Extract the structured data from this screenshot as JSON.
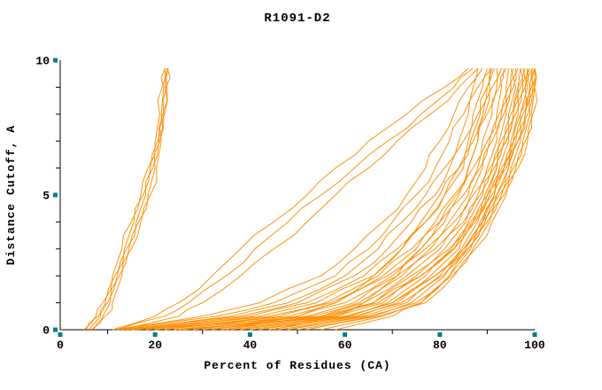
{
  "chart_data": {
    "type": "line",
    "title": "R1091-D2",
    "xlabel": "Percent of Residues (CA)",
    "ylabel": "Distance Cutoff, A",
    "xlim": [
      0,
      100
    ],
    "ylim": [
      0,
      10
    ],
    "x_major_ticks": [
      0,
      20,
      40,
      60,
      80,
      100
    ],
    "x_minor_ticks": [
      10,
      30,
      50,
      70,
      90
    ],
    "y_major_ticks": [
      0,
      5,
      10
    ],
    "y_minor_ticks": [
      1,
      2,
      3,
      4,
      6,
      7,
      8,
      9
    ],
    "grid": false,
    "legend": "none",
    "line_color": "#ff8c00",
    "tick_marker_color": "#008080",
    "y_anchors": [
      0,
      0.5,
      1,
      2,
      3,
      4,
      5,
      6,
      7,
      8,
      9,
      9.7
    ],
    "series_x": [
      [
        5,
        7.5,
        9,
        11,
        13,
        15,
        17,
        18.5,
        20,
        21,
        21.5,
        22
      ],
      [
        5.5,
        8,
        9.5,
        11.5,
        13.5,
        15.5,
        17.5,
        19,
        20.5,
        21.3,
        21.8,
        22.1
      ],
      [
        6,
        8.5,
        10,
        12,
        14,
        16,
        18,
        19.5,
        20.8,
        21.6,
        22.1,
        22.4
      ],
      [
        6.5,
        9,
        10.5,
        12.5,
        14.5,
        16.5,
        18.5,
        20,
        21,
        21.8,
        22.3,
        22.6
      ],
      [
        7,
        9.5,
        11,
        13,
        15,
        17,
        19,
        20.3,
        21.3,
        22,
        22.5,
        22.8
      ],
      [
        11,
        20,
        25,
        32,
        38,
        45,
        52,
        58,
        65,
        73,
        81,
        86
      ],
      [
        12,
        22,
        27,
        35,
        41,
        48,
        55,
        62,
        69,
        76,
        83,
        87
      ],
      [
        13,
        25,
        30,
        38,
        45,
        52,
        58,
        65,
        71,
        78,
        84,
        88
      ],
      [
        11,
        30,
        42,
        55,
        62,
        68,
        73,
        77,
        80,
        83,
        86,
        88
      ],
      [
        12,
        33,
        45,
        58,
        65,
        70,
        75,
        79,
        82,
        85,
        87,
        89
      ],
      [
        13,
        36,
        48,
        60,
        67,
        72,
        77,
        81,
        84,
        86,
        88,
        90
      ],
      [
        14,
        38,
        50,
        62,
        69,
        74,
        79,
        82,
        85,
        87,
        89,
        91
      ],
      [
        15,
        40,
        52,
        64,
        71,
        76,
        80,
        84,
        86,
        88,
        90,
        91.5
      ],
      [
        16,
        42,
        54,
        66,
        72,
        77,
        81,
        85,
        87,
        89,
        91,
        92
      ],
      [
        18,
        44,
        56,
        67,
        74,
        79,
        83,
        86,
        88,
        90,
        92,
        93
      ],
      [
        20,
        46,
        57,
        68,
        75,
        80,
        84,
        87,
        89,
        91,
        92.5,
        93.5
      ],
      [
        22,
        48,
        58,
        69,
        76,
        81,
        85,
        88,
        90,
        92,
        93,
        94
      ],
      [
        24,
        50,
        60,
        70,
        77,
        82,
        86,
        88.5,
        90.5,
        92.5,
        94,
        94.5
      ],
      [
        26,
        52,
        62,
        71,
        78,
        83,
        86.5,
        89,
        91,
        93,
        94.5,
        95
      ],
      [
        28,
        53,
        63,
        72,
        79,
        84,
        87,
        90,
        92,
        93.5,
        95,
        95.5
      ],
      [
        30,
        55,
        64,
        73,
        80,
        85,
        88,
        90.5,
        92.5,
        94,
        95.5,
        96
      ],
      [
        32,
        56,
        66,
        74,
        81,
        85.5,
        88.5,
        91,
        93,
        94.5,
        96,
        96.5
      ],
      [
        34,
        57,
        67,
        75,
        82,
        86,
        89,
        91.5,
        93.5,
        95,
        96.5,
        97
      ],
      [
        36,
        58,
        68,
        76,
        82.5,
        86.5,
        89.5,
        92,
        94,
        95.5,
        97,
        97.5
      ],
      [
        38,
        60,
        69,
        77,
        83,
        87,
        90,
        92.5,
        94.5,
        96,
        97.5,
        98
      ],
      [
        40,
        61,
        70,
        78,
        84,
        87.5,
        90.5,
        93,
        95,
        96.5,
        98,
        98.5
      ],
      [
        42,
        62,
        71,
        79,
        84.5,
        88,
        91,
        93.5,
        95.5,
        97,
        98.5,
        99
      ],
      [
        44,
        63,
        72,
        80,
        85,
        88.5,
        91.5,
        94,
        96,
        97.5,
        99,
        99.5
      ],
      [
        46,
        64,
        73,
        80.5,
        85.5,
        89,
        92,
        94.5,
        96.5,
        98,
        99.3,
        100
      ],
      [
        48,
        65,
        74,
        81,
        86,
        89.5,
        92.5,
        95,
        97,
        98.5,
        99.6,
        100
      ],
      [
        50,
        66,
        75,
        82,
        86.5,
        90,
        93,
        95.5,
        97.5,
        99,
        100,
        100
      ],
      [
        52,
        67,
        76,
        82.5,
        87,
        90.5,
        93.5,
        96,
        98,
        99.3,
        100,
        100
      ],
      [
        55,
        68,
        77,
        83,
        87.5,
        91,
        94,
        96.5,
        98.5,
        99.6,
        100,
        100
      ],
      [
        15,
        55,
        66,
        76,
        83,
        87,
        90,
        92,
        94,
        95.5,
        96.5,
        97
      ],
      [
        45,
        58,
        64,
        71,
        76,
        80,
        83.5,
        86,
        88,
        89.5,
        90.5,
        91
      ],
      [
        35,
        50,
        58,
        66,
        72,
        77,
        81,
        84,
        86.5,
        88.5,
        90,
        90.5
      ],
      [
        25,
        60,
        70,
        79,
        85,
        89,
        92,
        94.5,
        96.5,
        98,
        99,
        99.5
      ],
      [
        58,
        70,
        76,
        82,
        86,
        89,
        91.5,
        93.5,
        95.5,
        97,
        98,
        98.5
      ]
    ]
  }
}
